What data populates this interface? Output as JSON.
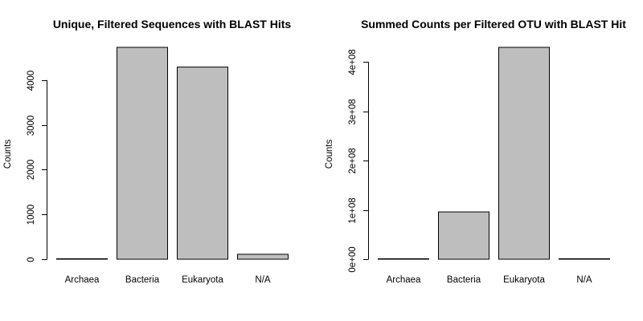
{
  "chart_data": [
    {
      "type": "bar",
      "title": "Unique, Filtered Sequences with BLAST Hits",
      "xlabel": "",
      "ylabel": "Counts",
      "categories": [
        "Archaea",
        "Bacteria",
        "Eukaryota",
        "N/A"
      ],
      "values": [
        3,
        4730,
        4290,
        110
      ],
      "ylim": [
        0,
        4730
      ],
      "yticks": [
        0,
        1000,
        2000,
        3000,
        4000
      ],
      "ytick_labels": [
        "0",
        "1000",
        "2000",
        "3000",
        "4000"
      ],
      "bar_color": "#bebebe",
      "grid": false,
      "legend": "none"
    },
    {
      "type": "bar",
      "title": "Summed Counts per Filtered OTU with BLAST Hit",
      "xlabel": "",
      "ylabel": "Counts",
      "categories": [
        "Archaea",
        "Bacteria",
        "Eukaryota",
        "N/A"
      ],
      "values": [
        100000,
        96000000,
        430000000,
        1000000
      ],
      "ylim": [
        0,
        430000000
      ],
      "yticks": [
        0,
        100000000,
        200000000,
        300000000,
        400000000
      ],
      "ytick_labels": [
        "0e+00",
        "1e+08",
        "2e+08",
        "3e+08",
        "4e+08"
      ],
      "bar_color": "#bebebe",
      "grid": false,
      "legend": "none"
    }
  ]
}
